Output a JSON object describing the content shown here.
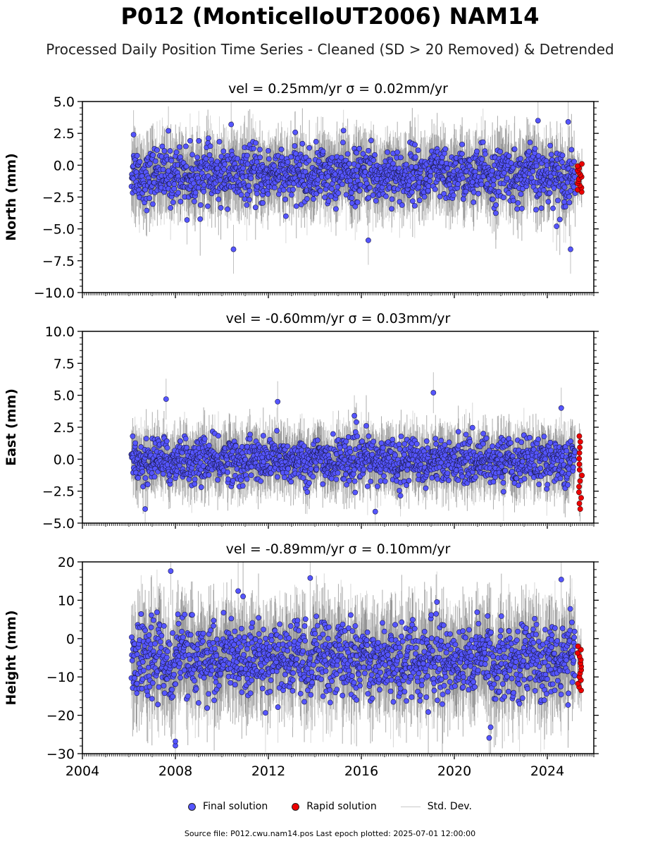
{
  "title": "P012 (MonticelloUT2006) NAM14",
  "subtitle": "Processed Daily Position Time Series - Cleaned (SD > 20 Removed) & Detrended",
  "footer": "Source file: P012.cwu.nam14.pos  Last epoch plotted: 2025-07-01 12:00:00",
  "legend": [
    {
      "label": "Final solution",
      "color": "#5555ff",
      "kind": "marker"
    },
    {
      "label": "Rapid solution",
      "color": "#ee0000",
      "kind": "marker"
    },
    {
      "label": "Std. Dev.",
      "color": "#c8c8c8",
      "kind": "line"
    }
  ],
  "colors": {
    "final": "#5555ff",
    "rapid": "#ee0000",
    "errorbar": "#9a9a9a"
  },
  "chart_data": [
    {
      "type": "scatter",
      "panel": "north",
      "title": "vel = 0.25mm/yr   σ = 0.02mm/yr",
      "ylabel": "North (mm)",
      "xlabel": "",
      "xlim": [
        2004,
        2026
      ],
      "ylim": [
        -10,
        5
      ],
      "yticks": [
        "−10.0",
        "−7.5",
        "−5.0",
        "−2.5",
        "0.0",
        "2.5",
        "5.0"
      ],
      "series": [
        {
          "name": "Final solution",
          "x_range": [
            2006.1,
            2025.2
          ],
          "center": -0.8,
          "spread": 1.2,
          "x": [
            2006.2,
            2007.7,
            2008.5,
            2010.4,
            2010.5,
            2016.3,
            2024.4,
            2024.9,
            2025.0,
            2023.6
          ],
          "y": [
            2.4,
            2.7,
            -4.3,
            3.2,
            -6.6,
            -5.9,
            -4.8,
            3.4,
            -6.6,
            3.5
          ]
        },
        {
          "name": "Rapid solution",
          "x_range": [
            2025.3,
            2025.5
          ],
          "y_min": -2.1,
          "y_max": 0.1
        }
      ]
    },
    {
      "type": "scatter",
      "panel": "east",
      "title": "vel = -0.60mm/yr   σ = 0.03mm/yr",
      "ylabel": "East (mm)",
      "xlabel": "",
      "xlim": [
        2004,
        2026
      ],
      "ylim": [
        -5,
        10
      ],
      "yticks": [
        "−5.0",
        "−2.5",
        "0.0",
        "2.5",
        "5.0",
        "7.5",
        "10.0"
      ],
      "series": [
        {
          "name": "Final solution",
          "x_range": [
            2006.1,
            2025.2
          ],
          "center": -0.1,
          "spread": 1.0,
          "x": [
            2007.6,
            2012.4,
            2019.1,
            2024.6,
            2006.7,
            2016.6,
            2015.7
          ],
          "y": [
            4.7,
            4.5,
            5.2,
            4.0,
            -3.9,
            -4.1,
            3.4
          ]
        },
        {
          "name": "Rapid solution",
          "x_range": [
            2025.3,
            2025.5
          ],
          "y_min": -3.9,
          "y_max": 1.8
        }
      ]
    },
    {
      "type": "scatter",
      "panel": "height",
      "title": "vel = -0.89mm/yr   σ = 0.10mm/yr",
      "ylabel": "Height (mm)",
      "xlabel": "",
      "xlim": [
        2004,
        2026
      ],
      "ylim": [
        -30,
        20
      ],
      "yticks": [
        "−30",
        "−20",
        "−10",
        "0",
        "10",
        "20"
      ],
      "xticks": [
        "2004",
        "2008",
        "2012",
        "2016",
        "2020",
        "2024"
      ],
      "series": [
        {
          "name": "Final solution",
          "x_range": [
            2006.1,
            2025.2
          ],
          "center": -5.5,
          "spread": 5.5,
          "x": [
            2007.8,
            2008.0,
            2013.8,
            2021.5,
            2024.6,
            2008.0,
            2010.7
          ],
          "y": [
            17.6,
            -27.9,
            15.8,
            -25.9,
            15.4,
            -26.8,
            12.4
          ]
        },
        {
          "name": "Rapid solution",
          "x_range": [
            2025.3,
            2025.5
          ],
          "y_min": -13.5,
          "y_max": -2.0
        }
      ]
    }
  ]
}
